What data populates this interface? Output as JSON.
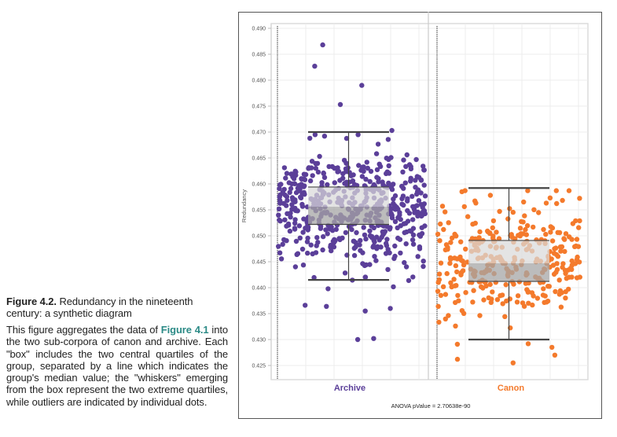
{
  "caption": {
    "figure_number": "Figure 4.2.",
    "title": "Redundancy in the nineteenth century: a synthetic diagram",
    "body_before_link": "This figure aggregates the data of ",
    "link_text": "Figure 4.1",
    "body_after_link": " into the two sub-corpora of canon and archive. Each \"box\" includes the two central quartiles of the group, separated by a line which indicates the group's median value; the \"whiskers\" emerging from the box represent the two extreme quartiles, while outliers are indicated by individual dots."
  },
  "chart_data": {
    "type": "boxplot-jitter",
    "ylabel": "Redundancy",
    "xlabel": "",
    "ylim": [
      0.4225,
      0.4905
    ],
    "yticks": [
      "0.490",
      "0.485",
      "0.480",
      "0.475",
      "0.470",
      "0.465",
      "0.460",
      "0.455",
      "0.450",
      "0.445",
      "0.440",
      "0.435",
      "0.430",
      "0.425"
    ],
    "ytick_values": [
      0.49,
      0.485,
      0.48,
      0.475,
      0.47,
      0.465,
      0.46,
      0.455,
      0.45,
      0.445,
      0.44,
      0.435,
      0.43,
      0.425
    ],
    "grid": true,
    "annotation": "ANOVA pValue = 2.70638e-90",
    "categories": [
      "Archive",
      "Canon"
    ],
    "series": [
      {
        "name": "Archive",
        "color": "#5b3f99",
        "n_points": 520,
        "whisker_high": 0.47,
        "q3": 0.4594,
        "median": 0.4556,
        "q1": 0.4522,
        "whisker_low": 0.4415,
        "spread_sd": 0.0055,
        "outliers": [
          0.4868,
          0.4827,
          0.479,
          0.4753,
          0.4703,
          0.4688,
          0.4302,
          0.43,
          0.4355,
          0.436,
          0.4364,
          0.4366
        ]
      },
      {
        "name": "Canon",
        "color": "#f47a2c",
        "n_points": 330,
        "whisker_high": 0.4592,
        "q3": 0.4491,
        "median": 0.4447,
        "q1": 0.4412,
        "whisker_low": 0.43,
        "spread_sd": 0.0055,
        "outliers": [
          0.4585,
          0.4578,
          0.4573,
          0.4563,
          0.4292,
          0.4285,
          0.427,
          0.4262,
          0.4255
        ]
      }
    ],
    "colors": {
      "box_fill_upper": "#d9d9d9",
      "box_fill_lower": "#a6a6a6",
      "box_stroke": "#444444",
      "grid": "#ececec",
      "divider": "#cccccc",
      "caption_link": "#2b8a86"
    }
  }
}
